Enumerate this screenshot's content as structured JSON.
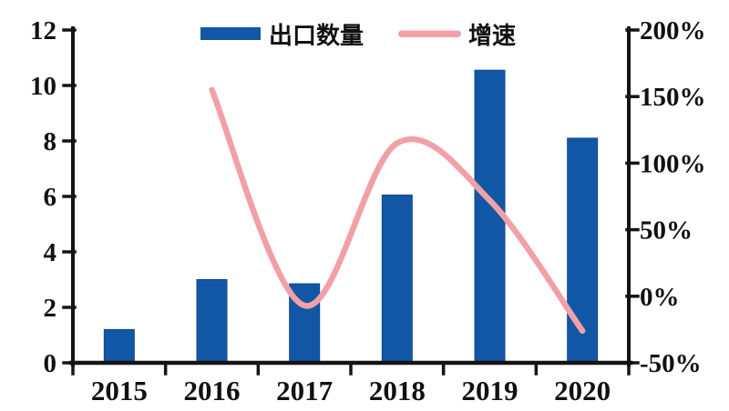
{
  "chart_data": {
    "type": "bar",
    "subtype": "combo-bar-line",
    "title": "",
    "categories": [
      "2015",
      "2016",
      "2017",
      "2018",
      "2019",
      "2020"
    ],
    "series": [
      {
        "name": "出口数量",
        "type": "bar",
        "y_axis": "left",
        "values": [
          1.2,
          3.0,
          2.85,
          6.05,
          10.55,
          8.1
        ]
      },
      {
        "name": "增速",
        "type": "line",
        "y_axis": "right",
        "unit": "percent",
        "values": [
          null,
          155,
          -7,
          115,
          72,
          -26
        ]
      }
    ],
    "left_axis": {
      "min": 0,
      "max": 12,
      "tick_values": [
        12,
        10,
        8,
        6,
        4,
        2,
        0
      ],
      "tick_labels": [
        "12",
        "10",
        "8",
        "6",
        "4",
        "2",
        "0"
      ]
    },
    "right_axis": {
      "min": -50,
      "max": 200,
      "tick_values": [
        200,
        150,
        100,
        50,
        0,
        -50
      ],
      "tick_labels": [
        "200%",
        "150%",
        "100%",
        "50%",
        "0%",
        "-50%"
      ]
    },
    "legend": {
      "position": "top-center",
      "entries": [
        {
          "label": "出口数量",
          "swatch": "bar"
        },
        {
          "label": "增速",
          "swatch": "line"
        }
      ]
    },
    "grid": false
  },
  "colors": {
    "bar": "#1257A5",
    "bar_edge": "#0E4A8F",
    "line": "#F2A0A7",
    "axis": "#141414",
    "text": "#111111",
    "background": "#ffffff"
  }
}
